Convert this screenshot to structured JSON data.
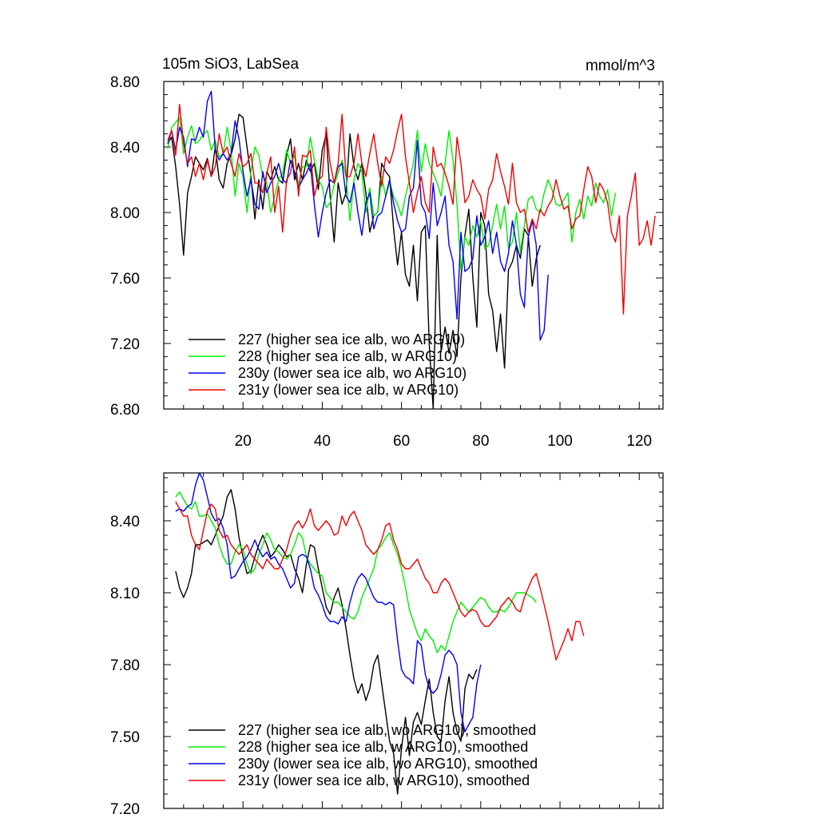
{
  "figure": {
    "title": "105m SiO3, LabSea",
    "units": "mmol/m^3"
  },
  "colors": {
    "227": "#000000",
    "228": "#00ee00",
    "230y": "#0000ee",
    "231y": "#ee0000"
  },
  "chart_data": [
    {
      "type": "line",
      "title": "105m SiO3, LabSea",
      "units_label": "mmol/m^3",
      "xlabel": "",
      "ylabel": "",
      "xlim": [
        0,
        126
      ],
      "ylim": [
        6.8,
        8.8
      ],
      "xticks": [
        20,
        40,
        60,
        80,
        100,
        120
      ],
      "yticks": [
        6.8,
        7.2,
        7.6,
        8.0,
        8.4,
        8.8
      ],
      "ytick_labels": [
        "6.80",
        "7.20",
        "7.60",
        "8.00",
        "8.40",
        "8.80"
      ],
      "legend_position": "bottom-left",
      "series": [
        {
          "name": "227 (higher sea ice alb, wo ARG10)",
          "color_key": "227",
          "x_start": 1,
          "values": [
            8.42,
            8.46,
            8.28,
            8.05,
            7.74,
            8.12,
            8.22,
            8.34,
            8.3,
            8.26,
            8.33,
            8.22,
            8.4,
            8.2,
            8.15,
            8.3,
            8.35,
            8.45,
            8.6,
            8.58,
            8.4,
            8.22,
            7.96,
            8.2,
            8.02,
            8.25,
            8.2,
            8.28,
            8.2,
            8.18,
            8.35,
            8.45,
            8.2,
            8.3,
            8.2,
            8.32,
            8.25,
            8.3,
            8.14,
            8.38,
            8.48,
            8.1,
            7.82,
            8.18,
            8.05,
            8.12,
            8.48,
            8.28,
            8.2,
            8.3,
            8.12,
            7.88,
            7.98,
            8.0,
            8.3,
            8.25,
            8.22,
            7.9,
            7.68,
            7.88,
            7.62,
            7.55,
            7.8,
            7.46,
            7.88,
            7.92,
            7.2,
            6.8,
            7.86,
            7.15,
            7.3,
            7.14,
            7.28,
            7.12,
            7.6,
            7.86,
            8.02,
            7.6,
            7.3,
            8.0,
            7.92,
            7.5,
            7.4,
            7.15,
            7.38,
            7.05,
            7.65,
            7.7,
            7.8,
            7.72,
            7.9,
            7.86,
            7.55,
            7.72,
            7.8
          ]
        },
        {
          "name": "228 (higher sea ice alb, w ARG10)",
          "color_key": "228",
          "x_start": 1,
          "values": [
            8.39,
            8.52,
            8.55,
            8.58,
            8.36,
            8.46,
            8.53,
            8.42,
            8.44,
            8.48,
            8.5,
            8.38,
            8.44,
            8.34,
            8.36,
            8.52,
            8.38,
            8.1,
            8.3,
            8.22,
            8.0,
            8.25,
            8.4,
            8.35,
            8.22,
            8.18,
            8.0,
            8.1,
            8.2,
            8.24,
            8.38,
            8.3,
            8.35,
            8.16,
            8.28,
            8.28,
            8.46,
            8.32,
            8.2,
            8.16,
            8.03,
            8.06,
            8.17,
            8.24,
            8.32,
            8.22,
            7.95,
            8.2,
            8.3,
            8.25,
            8.0,
            8.15,
            7.98,
            8.0,
            8.22,
            8.1,
            8.18,
            8.1,
            8.05,
            7.98,
            8.1,
            8.2,
            8.3,
            8.5,
            8.25,
            8.42,
            8.3,
            8.24,
            8.18,
            8.1,
            8.3,
            8.5,
            8.32,
            8.05,
            7.65,
            7.85,
            7.8,
            7.92,
            7.85,
            7.95,
            7.78,
            7.8,
            7.92,
            8.05,
            7.9,
            8.04,
            7.78,
            7.82,
            8.0,
            7.76,
            7.92,
            8.08,
            8.1,
            8.02,
            8.0,
            8.12,
            8.2,
            8.14,
            8.05,
            8.04,
            8.08,
            8.12,
            7.82,
            8.0,
            8.08,
            7.96,
            8.1,
            8.04,
            8.18,
            8.1,
            8.06,
            8.14,
            7.98,
            8.12
          ]
        },
        {
          "name": "230y (lower sea ice alb, wo ARG10)",
          "color_key": "230y",
          "x_start": 1,
          "values": [
            8.42,
            8.5,
            8.38,
            8.52,
            8.46,
            8.28,
            8.45,
            8.44,
            8.52,
            8.46,
            8.68,
            8.74,
            8.38,
            8.32,
            8.36,
            8.32,
            8.36,
            8.56,
            8.45,
            8.25,
            8.1,
            8.2,
            8.05,
            8.02,
            8.25,
            8.12,
            8.18,
            8.22,
            8.3,
            8.2,
            8.18,
            8.32,
            8.25,
            8.15,
            8.2,
            8.24,
            8.3,
            8.05,
            7.85,
            8.0,
            8.12,
            8.2,
            8.18,
            8.28,
            8.3,
            8.1,
            8.06,
            8.18,
            8.0,
            7.86,
            8.06,
            8.12,
            7.9,
            7.98,
            8.0,
            8.1,
            8.2,
            8.06,
            7.95,
            7.88,
            7.9,
            8.1,
            8.15,
            8.44,
            8.05,
            8.0,
            7.84,
            8.18,
            7.92,
            8.0,
            8.1,
            7.8,
            7.7,
            7.35,
            7.88,
            7.64,
            7.66,
            7.72,
            7.98,
            7.8,
            7.85,
            7.95,
            7.75,
            7.88,
            7.7,
            7.64,
            7.75,
            7.95,
            7.8,
            7.5,
            7.42,
            7.85,
            7.95,
            7.8,
            7.22,
            7.28,
            7.62
          ]
        },
        {
          "name": "231y (lower sea ice alb, w ARG10)",
          "color_key": "231y",
          "x_start": 1,
          "values": [
            8.44,
            8.5,
            8.35,
            8.66,
            8.42,
            8.3,
            8.34,
            8.22,
            8.3,
            8.2,
            8.32,
            8.22,
            8.28,
            8.48,
            8.36,
            8.4,
            8.3,
            8.22,
            8.36,
            8.28,
            8.3,
            8.36,
            8.18,
            8.18,
            8.12,
            8.24,
            8.34,
            8.0,
            8.16,
            7.88,
            8.2,
            8.24,
            8.4,
            8.1,
            8.35,
            8.34,
            8.38,
            8.1,
            8.2,
            8.22,
            8.52,
            8.3,
            8.18,
            8.3,
            8.6,
            8.22,
            8.22,
            8.3,
            8.48,
            8.3,
            8.22,
            8.36,
            8.48,
            8.3,
            8.16,
            8.34,
            8.3,
            8.38,
            8.5,
            8.6,
            8.34,
            8.18,
            8.0,
            8.12,
            8.22,
            8.06,
            8.0,
            8.4,
            8.28,
            8.3,
            8.24,
            8.16,
            8.05,
            8.46,
            8.3,
            8.06,
            8.1,
            8.2,
            8.14,
            8.1,
            7.96,
            8.14,
            8.2,
            8.36,
            8.25,
            8.16,
            8.05,
            8.3,
            8.06,
            8.0,
            8.02,
            7.88,
            7.96,
            7.9,
            8.02,
            7.98,
            8.04,
            8.08,
            8.2,
            8.1,
            8.02,
            8.04,
            7.9,
            7.96,
            7.98,
            8.14,
            8.28,
            8.22,
            8.06,
            8.18,
            8.14,
            8.06,
            7.88,
            7.82,
            7.98,
            7.38,
            7.98,
            8.1,
            8.24,
            7.8,
            7.84,
            7.95,
            7.8,
            7.98
          ]
        }
      ]
    },
    {
      "type": "line",
      "title": "",
      "xlabel": "",
      "ylabel": "",
      "xlim": [
        0,
        126
      ],
      "ylim": [
        7.2,
        8.6
      ],
      "xticks": [
        20,
        40,
        60,
        80,
        100,
        120
      ],
      "yticks": [
        7.2,
        7.5,
        7.8,
        8.1,
        8.4
      ],
      "ytick_labels": [
        "7.20",
        "7.50",
        "7.80",
        "8.10",
        "8.40"
      ],
      "legend_position": "bottom-left",
      "series": [
        {
          "name": "227 (higher sea ice alb, wo ARG10), smoothed",
          "color_key": "227",
          "x_start": 3,
          "values": [
            8.19,
            8.12,
            8.08,
            8.12,
            8.18,
            8.3,
            8.3,
            8.31,
            8.32,
            8.3,
            8.34,
            8.38,
            8.42,
            8.5,
            8.53,
            8.45,
            8.33,
            8.25,
            8.18,
            8.19,
            8.25,
            8.3,
            8.34,
            8.3,
            8.25,
            8.27,
            8.3,
            8.28,
            8.25,
            8.26,
            8.2,
            8.16,
            8.1,
            8.22,
            8.3,
            8.29,
            8.2,
            8.12,
            8.04,
            8.01,
            8.08,
            8.12,
            8.05,
            7.95,
            7.84,
            7.74,
            7.68,
            7.72,
            7.65,
            7.7,
            7.8,
            7.84,
            7.72,
            7.6,
            7.48,
            7.43,
            7.26,
            7.45,
            7.58,
            7.42,
            7.56,
            7.6,
            7.55,
            7.65,
            7.74,
            7.6,
            7.5,
            7.48,
            7.65,
            7.75,
            7.6,
            7.52,
            7.48,
            7.7,
            7.76,
            7.74,
            7.78
          ]
        },
        {
          "name": "228 (higher sea ice alb, w ARG10), smoothed",
          "color_key": "228",
          "x_start": 3,
          "values": [
            8.5,
            8.52,
            8.49,
            8.46,
            8.45,
            8.48,
            8.42,
            8.42,
            8.43,
            8.4,
            8.37,
            8.3,
            8.25,
            8.22,
            8.22,
            8.27,
            8.3,
            8.28,
            8.22,
            8.18,
            8.2,
            8.26,
            8.3,
            8.35,
            8.32,
            8.28,
            8.27,
            8.25,
            8.24,
            8.26,
            8.3,
            8.35,
            8.33,
            8.25,
            8.22,
            8.2,
            8.18,
            8.17,
            8.1,
            8.08,
            8.06,
            8.06,
            8.04,
            8.02,
            8.0,
            7.99,
            8.02,
            8.08,
            8.12,
            8.16,
            8.2,
            8.28,
            8.3,
            8.33,
            8.35,
            8.3,
            8.26,
            8.2,
            8.12,
            8.03,
            7.98,
            7.93,
            7.9,
            7.95,
            7.92,
            7.9,
            7.85,
            7.88,
            7.86,
            7.92,
            7.98,
            8.02,
            8.06,
            8.04,
            8.02,
            8.04,
            8.06,
            8.08,
            8.07,
            8.04,
            8.02,
            8.02,
            8.03,
            8.02,
            8.04,
            8.07,
            8.1,
            8.1,
            8.1,
            8.09,
            8.08,
            8.06
          ]
        },
        {
          "name": "230y (lower sea ice alb, wo ARG10), smoothed",
          "color_key": "230y",
          "x_start": 3,
          "values": [
            8.44,
            8.45,
            8.44,
            8.46,
            8.47,
            8.55,
            8.6,
            8.57,
            8.5,
            8.43,
            8.4,
            8.41,
            8.37,
            8.3,
            8.16,
            8.17,
            8.2,
            8.23,
            8.25,
            8.28,
            8.32,
            8.28,
            8.25,
            8.27,
            8.24,
            8.25,
            8.22,
            8.2,
            8.16,
            8.12,
            8.14,
            8.25,
            8.26,
            8.25,
            8.2,
            8.12,
            8.09,
            8.05,
            8.0,
            7.98,
            7.98,
            7.97,
            8.0,
            7.98,
            8.06,
            8.12,
            8.16,
            8.18,
            8.16,
            8.12,
            8.08,
            8.06,
            8.06,
            8.05,
            8.06,
            8.05,
            7.9,
            7.78,
            7.75,
            7.74,
            7.72,
            7.9,
            7.88,
            7.76,
            7.7,
            7.68,
            7.7,
            7.76,
            7.84,
            7.86,
            7.84,
            7.8,
            7.6,
            7.52,
            7.55,
            7.58,
            7.72,
            7.8
          ]
        },
        {
          "name": "231y (lower sea ice alb, w ARG10), smoothed",
          "color_key": "231y",
          "x_start": 3,
          "values": [
            8.48,
            8.45,
            8.42,
            8.42,
            8.34,
            8.3,
            8.28,
            8.36,
            8.44,
            8.47,
            8.45,
            8.36,
            8.33,
            8.34,
            8.3,
            8.28,
            8.26,
            8.28,
            8.3,
            8.26,
            8.24,
            8.22,
            8.2,
            8.24,
            8.22,
            8.2,
            8.2,
            8.24,
            8.28,
            8.34,
            8.38,
            8.4,
            8.37,
            8.4,
            8.45,
            8.38,
            8.36,
            8.38,
            8.4,
            8.38,
            8.34,
            8.35,
            8.42,
            8.38,
            8.42,
            8.44,
            8.4,
            8.36,
            8.3,
            8.28,
            8.26,
            8.28,
            8.32,
            8.38,
            8.39,
            8.32,
            8.28,
            8.22,
            8.2,
            8.2,
            8.22,
            8.24,
            8.2,
            8.16,
            8.14,
            8.1,
            8.1,
            8.14,
            8.16,
            8.14,
            8.1,
            8.06,
            8.02,
            8.0,
            8.02,
            8.03,
            8.02,
            7.98,
            7.96,
            7.96,
            7.98,
            8.0,
            8.04,
            8.06,
            8.08,
            8.06,
            8.03,
            8.02,
            8.08,
            8.12,
            8.16,
            8.18,
            8.12,
            8.05,
            7.98,
            7.9,
            7.82,
            7.86,
            7.9,
            7.95,
            7.9,
            7.98,
            7.98,
            7.92
          ]
        }
      ]
    }
  ]
}
